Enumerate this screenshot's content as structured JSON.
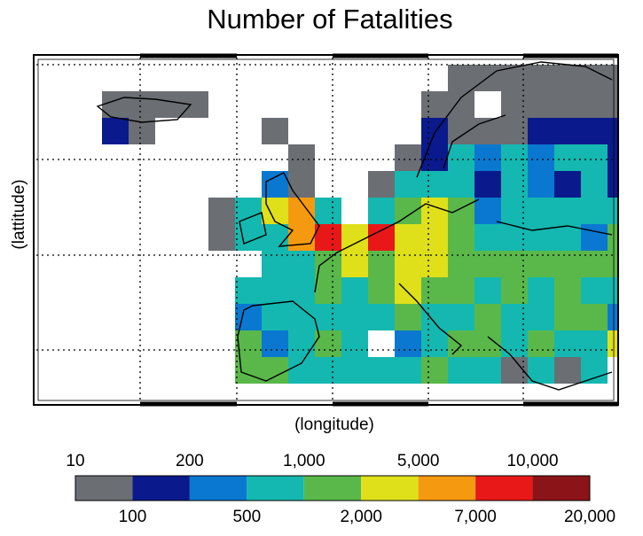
{
  "map": {
    "title": "Number of Fatalities",
    "x_label": "(longitude)",
    "y_label": "(lattitude)",
    "classes": [
      {
        "color": "#6b6e73"
      },
      {
        "color": "#0a1a8c"
      },
      {
        "color": "#0a78d0"
      },
      {
        "color": "#14b8b0"
      },
      {
        "color": "#5ab84a"
      },
      {
        "color": "#dfe01a"
      },
      {
        "color": "#f59a10"
      },
      {
        "color": "#e81818"
      },
      {
        "color": "#8b1418"
      }
    ],
    "boundaries": [
      10,
      100,
      200,
      500,
      {
        "value": 1000,
        "label": "1,000"
      },
      {
        "value": 2000,
        "label": "2,000"
      },
      {
        "value": 5000,
        "label": "5,000"
      },
      {
        "value": 7000,
        "label": "7,000"
      },
      {
        "value": 10000,
        "label": "10,000"
      },
      {
        "value": 20000,
        "label": "20,000"
      }
    ],
    "grid": [
      [
        null,
        null,
        null,
        null,
        null,
        null,
        null,
        null,
        null,
        null,
        null,
        null,
        null,
        null,
        null,
        0,
        0,
        0,
        0,
        0,
        0,
        0
      ],
      [
        null,
        null,
        0,
        0,
        0,
        0,
        null,
        null,
        null,
        null,
        null,
        null,
        null,
        null,
        0,
        0,
        null,
        0,
        0,
        0,
        0,
        0
      ],
      [
        null,
        null,
        1,
        0,
        null,
        null,
        null,
        null,
        0,
        null,
        null,
        null,
        null,
        null,
        1,
        0,
        0,
        0,
        1,
        1,
        1,
        1
      ],
      [
        null,
        null,
        null,
        null,
        null,
        null,
        null,
        null,
        null,
        0,
        null,
        null,
        null,
        0,
        1,
        3,
        2,
        3,
        2,
        3,
        3,
        1
      ],
      [
        null,
        null,
        null,
        null,
        null,
        null,
        null,
        null,
        2,
        0,
        null,
        null,
        0,
        3,
        3,
        3,
        1,
        3,
        2,
        1,
        3,
        1
      ],
      [
        null,
        null,
        null,
        null,
        null,
        null,
        0,
        3,
        5,
        6,
        3,
        null,
        3,
        4,
        5,
        4,
        2,
        3,
        3,
        3,
        3,
        3
      ],
      [
        null,
        null,
        null,
        null,
        null,
        null,
        0,
        3,
        3,
        6,
        7,
        5,
        7,
        5,
        5,
        4,
        3,
        3,
        3,
        3,
        2,
        4
      ],
      [
        null,
        null,
        null,
        null,
        null,
        null,
        null,
        null,
        3,
        3,
        4,
        5,
        4,
        5,
        5,
        4,
        4,
        4,
        4,
        4,
        4,
        4
      ],
      [
        null,
        null,
        null,
        null,
        null,
        null,
        null,
        3,
        3,
        3,
        4,
        3,
        4,
        5,
        4,
        4,
        3,
        4,
        3,
        4,
        3,
        3
      ],
      [
        null,
        null,
        null,
        null,
        null,
        null,
        null,
        2,
        3,
        3,
        3,
        3,
        3,
        4,
        3,
        3,
        4,
        3,
        3,
        4,
        4,
        2
      ],
      [
        null,
        null,
        null,
        null,
        null,
        null,
        null,
        4,
        2,
        3,
        4,
        3,
        null,
        2,
        3,
        4,
        4,
        3,
        4,
        3,
        3,
        5
      ],
      [
        null,
        null,
        null,
        null,
        null,
        null,
        null,
        4,
        4,
        3,
        3,
        3,
        3,
        3,
        4,
        3,
        3,
        0,
        3,
        0,
        3,
        null
      ]
    ]
  }
}
